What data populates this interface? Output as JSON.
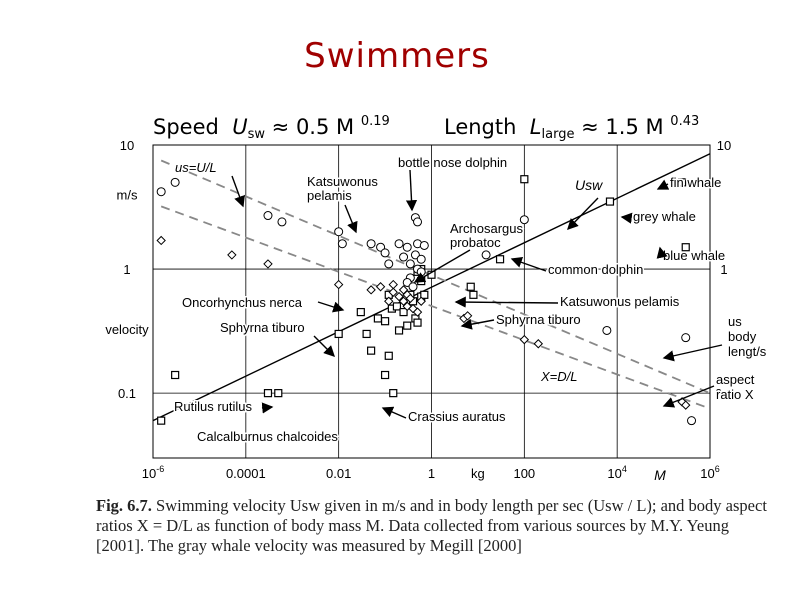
{
  "slide": {
    "title": "Swimmers",
    "formula_speed": {
      "prefix": "Speed",
      "var": "U",
      "sub": "sw",
      "rest": "≈ 0.5 M",
      "exp": "0.19"
    },
    "formula_length": {
      "prefix": "Length",
      "var": "L",
      "sub": "large",
      "rest": "≈ 1.5 M",
      "exp": "0.43"
    }
  },
  "caption": {
    "fig_label": "Fig. 6.7.",
    "text": "Swimming velocity Usw given in m/s and in body length per sec (Usw / L); and body aspect ratios X = D/L as function of body mass M. Data collected from various sources by M.Y. Yeung [2001]. The gray whale velocity was measured by Megill [2000]"
  },
  "chart_data": {
    "type": "scatter",
    "x_scale": "log",
    "y_scale": "log",
    "xlim": [
      1e-06,
      1000000
    ],
    "ylim": [
      0.03,
      10
    ],
    "x_ticks": [
      {
        "value": 1e-06,
        "label": "10",
        "exp": "-6"
      },
      {
        "value": 0.0001,
        "label": "0.0001"
      },
      {
        "value": 0.01,
        "label": "0.01"
      },
      {
        "value": 1,
        "label": "1"
      },
      {
        "value": 10,
        "label": "kg"
      },
      {
        "value": 100,
        "label": "100"
      },
      {
        "value": 10000,
        "label": "10",
        "exp": "4"
      },
      {
        "value": 1000000,
        "label": "10",
        "exp": "6"
      }
    ],
    "x_unit_label": "M",
    "y_ticks_left": [
      {
        "value": 10,
        "label": "10"
      },
      {
        "value": 4,
        "label": "m/s"
      },
      {
        "value": 1,
        "label": "1"
      },
      {
        "value": 0.33,
        "label": "velocity"
      },
      {
        "value": 0.1,
        "label": "0.1"
      }
    ],
    "y_ticks_right": [
      {
        "value": 10,
        "label": "10"
      },
      {
        "value": 1,
        "label": "1"
      },
      {
        "value": 0.1,
        "label": "0.1"
      }
    ],
    "gridlines_x": [
      1e-06,
      0.0001,
      0.01,
      1,
      100,
      10000,
      1000000
    ],
    "gridlines_y": [
      1,
      0.1
    ],
    "fit_lines": [
      {
        "name": "Usw",
        "style": "solid",
        "color": "#000000",
        "x": [
          1e-06,
          1000000
        ],
        "y": [
          0.06,
          8.5
        ]
      },
      {
        "name": "us",
        "style": "dashed",
        "color": "#888888",
        "x": [
          1.5e-06,
          1000000
        ],
        "y": [
          7.5,
          0.1
        ]
      },
      {
        "name": "X",
        "style": "dashed",
        "color": "#888888",
        "x": [
          1.5e-06,
          1000000
        ],
        "y": [
          3.2,
          0.075
        ]
      }
    ],
    "series": [
      {
        "name": "Usw",
        "marker": "square",
        "points": [
          [
            1.5e-06,
            0.06
          ],
          [
            3e-06,
            0.14
          ],
          [
            0.0003,
            0.1
          ],
          [
            0.0005,
            0.1
          ],
          [
            0.01,
            0.3
          ],
          [
            0.03,
            0.45
          ],
          [
            0.04,
            0.3
          ],
          [
            0.05,
            0.22
          ],
          [
            0.07,
            0.4
          ],
          [
            0.1,
            0.38
          ],
          [
            0.12,
            0.62
          ],
          [
            0.14,
            0.48
          ],
          [
            0.18,
            0.5
          ],
          [
            0.2,
            0.32
          ],
          [
            0.25,
            0.45
          ],
          [
            0.3,
            0.35
          ],
          [
            0.35,
            0.62
          ],
          [
            0.4,
            0.55
          ],
          [
            0.45,
            0.4
          ],
          [
            0.5,
            0.95
          ],
          [
            0.6,
            0.6
          ],
          [
            0.7,
            0.62
          ],
          [
            0.6,
            0.8
          ],
          [
            0.6,
            1.0
          ],
          [
            0.12,
            0.2
          ],
          [
            0.1,
            0.14
          ],
          [
            0.15,
            0.1
          ],
          [
            0.5,
            0.37
          ],
          [
            1,
            0.9
          ],
          [
            7,
            0.72
          ],
          [
            8,
            0.62
          ],
          [
            30,
            1.2
          ],
          [
            100,
            5.3
          ],
          [
            7000,
            3.5
          ],
          [
            250000,
            5.0
          ],
          [
            300000,
            1.5
          ]
        ]
      },
      {
        "name": "us",
        "marker": "circle",
        "points": [
          [
            1.5e-06,
            4.2
          ],
          [
            3e-06,
            5.0
          ],
          [
            0.0003,
            2.7
          ],
          [
            0.0006,
            2.4
          ],
          [
            0.01,
            2.0
          ],
          [
            0.012,
            1.6
          ],
          [
            0.05,
            1.6
          ],
          [
            0.08,
            1.5
          ],
          [
            0.1,
            1.35
          ],
          [
            0.12,
            1.1
          ],
          [
            0.2,
            1.6
          ],
          [
            0.25,
            1.25
          ],
          [
            0.3,
            1.5
          ],
          [
            0.45,
            2.6
          ],
          [
            0.5,
            2.4
          ],
          [
            0.5,
            1.6
          ],
          [
            0.45,
            1.3
          ],
          [
            0.6,
            1.2
          ],
          [
            0.5,
            1.0
          ],
          [
            0.6,
            0.95
          ],
          [
            0.7,
            1.55
          ],
          [
            0.35,
            1.1
          ],
          [
            0.35,
            0.85
          ],
          [
            0.3,
            0.78
          ],
          [
            0.4,
            0.72
          ],
          [
            15,
            1.3
          ],
          [
            100,
            2.5
          ],
          [
            6000,
            0.32
          ],
          [
            300000,
            0.28
          ],
          [
            400000,
            0.06
          ]
        ]
      },
      {
        "name": "X",
        "marker": "diamond",
        "points": [
          [
            1.5e-06,
            1.7
          ],
          [
            5e-05,
            1.3
          ],
          [
            0.0003,
            1.1
          ],
          [
            0.01,
            0.75
          ],
          [
            0.05,
            0.68
          ],
          [
            0.08,
            0.72
          ],
          [
            0.15,
            0.65
          ],
          [
            0.2,
            0.6
          ],
          [
            0.25,
            0.55
          ],
          [
            0.3,
            0.5
          ],
          [
            0.4,
            0.48
          ],
          [
            0.5,
            0.45
          ],
          [
            0.6,
            0.55
          ],
          [
            0.3,
            0.62
          ],
          [
            0.25,
            0.68
          ],
          [
            0.12,
            0.55
          ],
          [
            0.15,
            0.75
          ],
          [
            0.35,
            0.58
          ],
          [
            5,
            0.4
          ],
          [
            6,
            0.42
          ],
          [
            100,
            0.27
          ],
          [
            200,
            0.25
          ],
          [
            250000,
            0.085
          ],
          [
            300000,
            0.08
          ]
        ]
      }
    ],
    "annotations": [
      {
        "name": "us-equals-U-over-L",
        "text": "us=U/L"
      },
      {
        "name": "bottle-nose-dolphin",
        "text": "bottle nose dolphin"
      },
      {
        "name": "katsuwonus-pelamis-top",
        "text": "Katsuwonus pelamis"
      },
      {
        "name": "usw-label",
        "text": "Usw"
      },
      {
        "name": "fin-whale",
        "text": "fin whale"
      },
      {
        "name": "grey-whale",
        "text": "grey whale"
      },
      {
        "name": "archosargus-probatoc",
        "text": "Archosargus probatoc"
      },
      {
        "name": "blue-whale",
        "text": "blue whale"
      },
      {
        "name": "common-dolphin",
        "text": "common dolphin"
      },
      {
        "name": "oncorhynchus-nerca",
        "text": "Oncorhynchus nerca"
      },
      {
        "name": "katsuwonus-pelamis-mid",
        "text": "Katsuwonus pelamis"
      },
      {
        "name": "sphyrna-tiburo-left",
        "text": "Sphyrna tiburo"
      },
      {
        "name": "sphyrna-tiburo-right",
        "text": "Sphyrna tiburo"
      },
      {
        "name": "us-body-length",
        "text": "us body lengt/s"
      },
      {
        "name": "x-equals-D-over-L",
        "text": "X=D/L"
      },
      {
        "name": "aspect-ratio-x",
        "text": "aspect ratio X"
      },
      {
        "name": "rutilus-rutilus",
        "text": "Rutilus rutilus"
      },
      {
        "name": "crassius-auratus",
        "text": "Crassius auratus"
      },
      {
        "name": "calcalburnus-chalcoides",
        "text": "Calcalburnus chalcoides"
      }
    ]
  }
}
